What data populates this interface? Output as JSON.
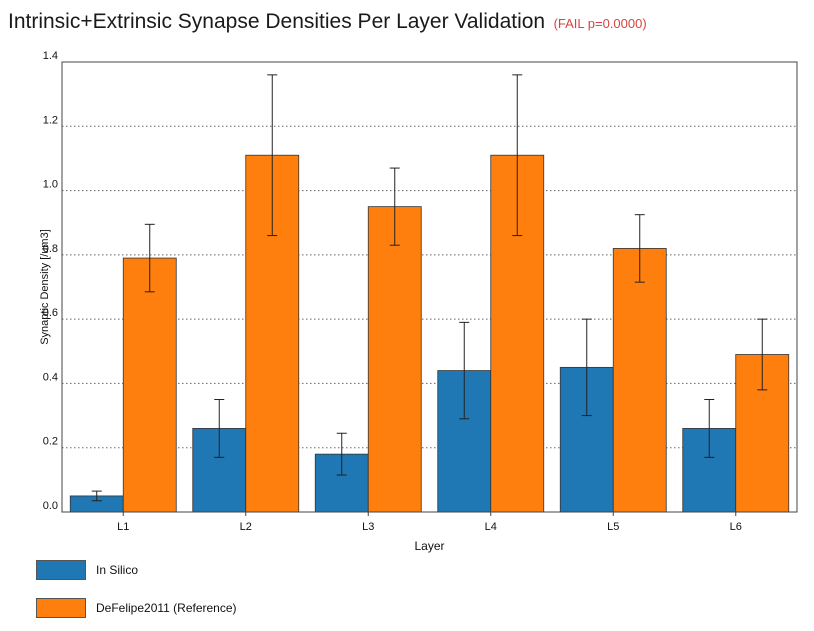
{
  "title": "Intrinsic+Extrinsic Synapse Densities Per Layer Validation",
  "status": "(FAIL p=0.0000)",
  "colors": {
    "in_silico": "#1f77b4",
    "reference": "#ff7f0e",
    "status": "#d64541"
  },
  "legend": [
    {
      "label": "In Silico"
    },
    {
      "label": "DeFelipe2011 (Reference)"
    }
  ],
  "chart_data": {
    "type": "bar",
    "xlabel": "Layer",
    "ylabel": "Synaptic Density [/um3]",
    "ylim": [
      0,
      1.4
    ],
    "yticks": [
      "0.0",
      "0.2",
      "0.4",
      "0.6",
      "0.8",
      "1.0",
      "1.2",
      "1.4"
    ],
    "grid": "horizontal dotted",
    "categories": [
      "L1",
      "L2",
      "L3",
      "L4",
      "L5",
      "L6"
    ],
    "series": [
      {
        "name": "In Silico",
        "values": [
          0.05,
          0.26,
          0.18,
          0.44,
          0.45,
          0.26
        ],
        "error": [
          0.015,
          0.09,
          0.065,
          0.15,
          0.15,
          0.09
        ]
      },
      {
        "name": "DeFelipe2011 (Reference)",
        "values": [
          0.79,
          1.11,
          0.95,
          1.11,
          0.82,
          0.49
        ],
        "error": [
          0.105,
          0.25,
          0.12,
          0.25,
          0.105,
          0.11
        ]
      }
    ]
  }
}
